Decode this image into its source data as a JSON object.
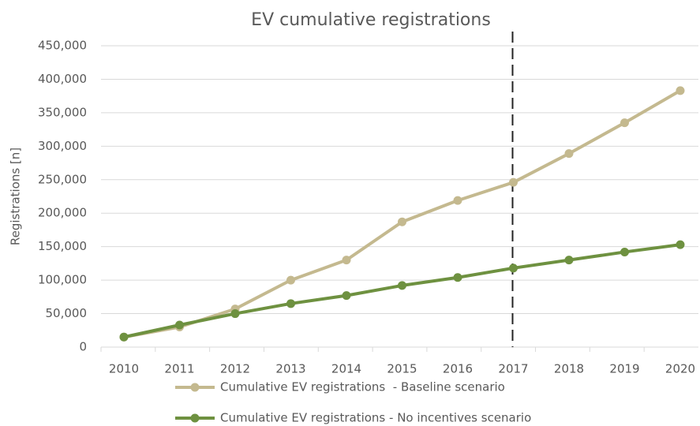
{
  "chart_data": {
    "type": "line",
    "title": "EV cumulative registrations",
    "y_label": "Registrations [n]",
    "categories": [
      "2010",
      "2011",
      "2012",
      "2013",
      "2014",
      "2015",
      "2016",
      "2017",
      "2018",
      "2019",
      "2020"
    ],
    "series": [
      {
        "name": "Cumulative EV registrations  - Baseline scenario",
        "color": "#c4b98f",
        "values": [
          15000,
          30000,
          57000,
          100000,
          130000,
          187000,
          219000,
          246000,
          289000,
          335000,
          383000
        ]
      },
      {
        "name": "Cumulative EV registrations - No incentives scenario",
        "color": "#6e9140",
        "values": [
          15000,
          33000,
          50000,
          65000,
          77000,
          92000,
          104000,
          118000,
          130000,
          142000,
          153000
        ]
      }
    ],
    "ylim": [
      0,
      450000
    ],
    "yticks": [
      0,
      {
        "value": 50000,
        "label": "50,000"
      },
      {
        "value": 100000,
        "label": "100,000"
      },
      {
        "value": 150000,
        "label": "150,000"
      },
      {
        "value": 200000,
        "label": "200,000"
      },
      {
        "value": 250000,
        "label": "250,000"
      },
      {
        "value": 300000,
        "label": "300,000"
      },
      {
        "value": 350000,
        "label": "350,000"
      },
      {
        "value": 400000,
        "label": "400,000"
      },
      {
        "value": 450000,
        "label": "450,000"
      }
    ],
    "grid": true,
    "vline_category": "2017",
    "legend": "bottom"
  }
}
